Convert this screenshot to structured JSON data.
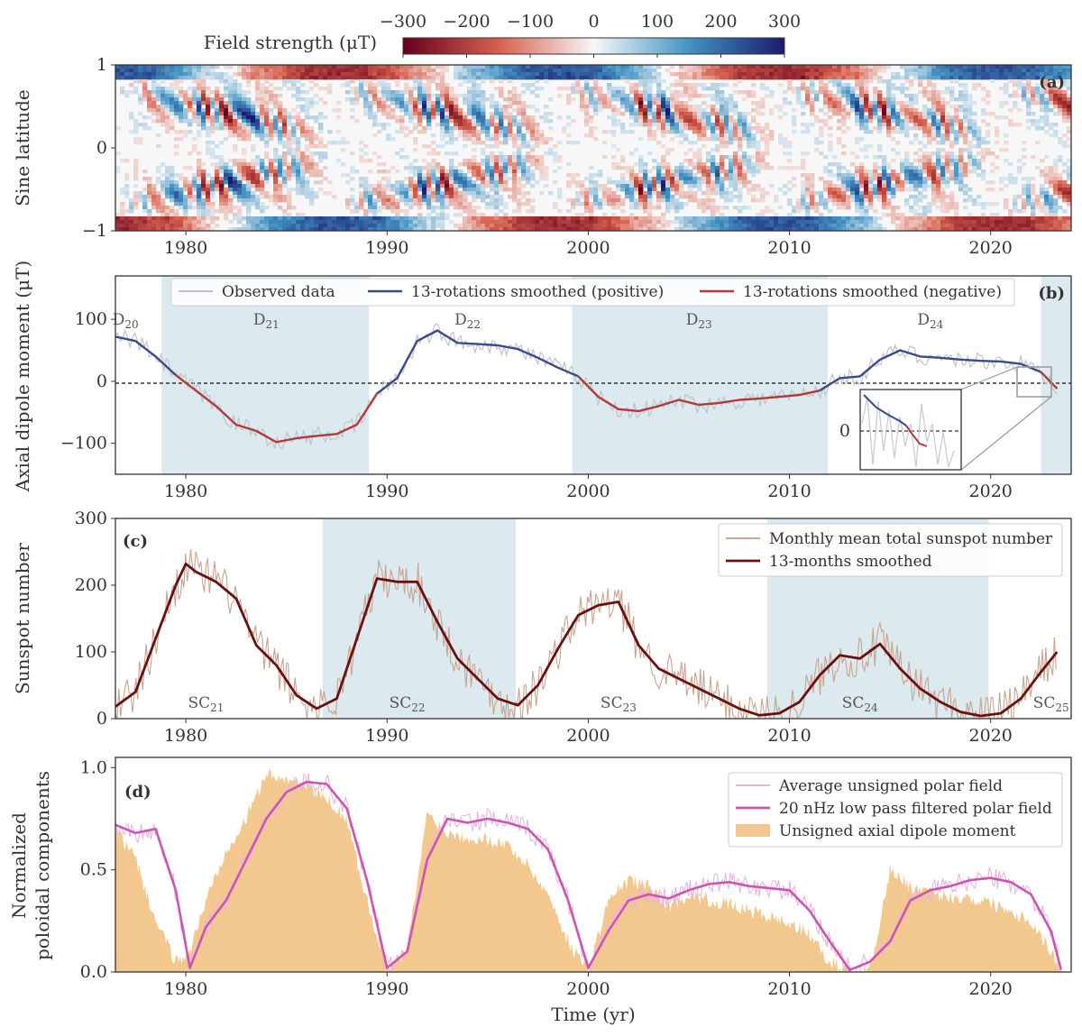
{
  "colorbar": {
    "label": "Field strength (μT)",
    "ticks": [
      "−300",
      "−200",
      "−100",
      "0",
      "100",
      "200",
      "300"
    ],
    "min": -300,
    "max": 300,
    "colors": [
      "#67001f",
      "#d6604d",
      "#f7f7f7",
      "#4393c3",
      "#1a1a6e"
    ]
  },
  "x_axis": {
    "range": [
      1976.5,
      2024.0
    ],
    "ticks": [
      "1980",
      "1990",
      "2000",
      "2010",
      "2020"
    ],
    "tick_values": [
      1980,
      1990,
      2000,
      2010,
      2020
    ],
    "label": "Time (yr)"
  },
  "panels": {
    "a": {
      "label": "(a)",
      "ylabel": "Sine latitude",
      "yticks": [
        "1",
        "0",
        "−1"
      ],
      "ytick_values": [
        1,
        0,
        -1
      ]
    },
    "b": {
      "label": "(b)",
      "ylabel": "Axial dipole moment (μT)",
      "yticks": [
        "100",
        "0",
        "−100"
      ],
      "ytick_values": [
        100,
        0,
        -100
      ],
      "legend": [
        "Observed data",
        "13-rotations smoothed (positive)",
        "13-rotations smoothed (negative)"
      ],
      "inset_tick": "0",
      "regions": [
        {
          "label": "D20",
          "base": "D",
          "sub": "20",
          "x": 1977.0
        },
        {
          "label": "D21",
          "base": "D",
          "sub": "21",
          "x": 1984.0
        },
        {
          "label": "D22",
          "base": "D",
          "sub": "22",
          "x": 1994.0
        },
        {
          "label": "D23",
          "base": "D",
          "sub": "23",
          "x": 2005.5
        },
        {
          "label": "D24",
          "base": "D",
          "sub": "24",
          "x": 2017.0
        }
      ],
      "shaded": [
        [
          1978.8,
          1989.1
        ],
        [
          1999.2,
          2011.9
        ],
        [
          2022.5,
          2024.0
        ]
      ]
    },
    "c": {
      "label": "(c)",
      "ylabel": "Sunspot number",
      "yticks": [
        "300",
        "200",
        "100",
        "0"
      ],
      "ytick_values": [
        300,
        200,
        100,
        0
      ],
      "legend": [
        "Monthly mean total sunspot number",
        "13-months smoothed"
      ],
      "regions": [
        {
          "label": "SC21",
          "base": "SC",
          "sub": "21",
          "x": 1981.0
        },
        {
          "label": "SC22",
          "base": "SC",
          "sub": "22",
          "x": 1991.0
        },
        {
          "label": "SC23",
          "base": "SC",
          "sub": "23",
          "x": 2001.5
        },
        {
          "label": "SC24",
          "base": "SC",
          "sub": "24",
          "x": 2013.5
        },
        {
          "label": "SC25",
          "base": "SC",
          "sub": "25",
          "x": 2023.0
        }
      ],
      "shaded": [
        [
          1986.8,
          1996.4
        ],
        [
          2008.9,
          2019.9
        ]
      ]
    },
    "d": {
      "label": "(d)",
      "ylabel": [
        "Normalized",
        "poloidal components"
      ],
      "yticks": [
        "1.0",
        "0.5",
        "0.0"
      ],
      "ytick_values": [
        1.0,
        0.5,
        0.0
      ],
      "legend": [
        "Average unsigned polar field",
        "20 nHz low pass filtered polar field",
        "Unsigned axial dipole moment"
      ]
    }
  },
  "colors": {
    "shade": "#dce9ef",
    "positive": "#3b4a8a",
    "negative": "#b33a3a",
    "observed": "#bfc4cc",
    "sunspot_raw": "#c9a490",
    "sunspot_smooth": "#6b1010",
    "polar_raw": "#e8b4e0",
    "polar_smooth": "#cc55b0",
    "dipole_fill": "#f2c88e"
  },
  "chart_data": [
    {
      "type": "heatmap",
      "title": "",
      "xlabel": "",
      "ylabel": "Sine latitude",
      "ylim": [
        -1,
        1
      ],
      "note_values": "magnetic butterfly diagram, field strength in μT, colour range -300 to 300"
    },
    {
      "type": "line",
      "ylabel": "Axial dipole moment (μT)",
      "ylim": [
        -150,
        170
      ],
      "x": [
        1976.5,
        1977.5,
        1978.5,
        1979.5,
        1980.5,
        1981.5,
        1982.5,
        1983.5,
        1984.5,
        1985.5,
        1986.5,
        1987.5,
        1988.5,
        1989.5,
        1990.5,
        1991.5,
        1992.5,
        1993.5,
        1994.5,
        1995.5,
        1996.5,
        1997.5,
        1998.5,
        1999.5,
        2000.5,
        2001.5,
        2002.5,
        2003.5,
        2004.5,
        2005.5,
        2006.5,
        2007.5,
        2008.5,
        2009.5,
        2010.5,
        2011.5,
        2012.5,
        2013.5,
        2014.5,
        2015.5,
        2016.5,
        2017.5,
        2018.5,
        2019.5,
        2020.5,
        2021.5,
        2022.5,
        2023.3
      ],
      "series": [
        {
          "name": "13-rotations smoothed (positive)",
          "values": [
            72,
            65,
            40,
            10,
            null,
            null,
            null,
            null,
            null,
            null,
            null,
            null,
            null,
            null,
            5,
            65,
            82,
            62,
            60,
            58,
            52,
            38,
            22,
            8,
            null,
            null,
            null,
            null,
            null,
            null,
            null,
            null,
            null,
            null,
            null,
            null,
            5,
            8,
            35,
            50,
            40,
            38,
            35,
            33,
            32,
            28,
            15,
            null
          ]
        },
        {
          "name": "13-rotations smoothed (negative)",
          "values": [
            null,
            null,
            null,
            null,
            -15,
            -40,
            -70,
            -80,
            -98,
            -92,
            -88,
            -85,
            -70,
            -20,
            null,
            null,
            null,
            null,
            null,
            null,
            null,
            null,
            null,
            null,
            -25,
            -45,
            -48,
            -40,
            -30,
            -38,
            -35,
            -30,
            -28,
            -25,
            -22,
            -15,
            null,
            null,
            null,
            null,
            null,
            null,
            null,
            null,
            null,
            null,
            null,
            -12
          ]
        }
      ]
    },
    {
      "type": "line",
      "ylabel": "Sunspot number",
      "ylim": [
        0,
        300
      ],
      "x": [
        1976.5,
        1977.5,
        1978.5,
        1979.5,
        1980.0,
        1980.5,
        1981.5,
        1982.5,
        1983.5,
        1984.5,
        1985.5,
        1986.5,
        1987.5,
        1988.5,
        1989.5,
        1990.5,
        1991.5,
        1992.5,
        1993.5,
        1994.5,
        1995.5,
        1996.5,
        1997.5,
        1998.5,
        1999.5,
        2000.5,
        2001.5,
        2002.5,
        2003.5,
        2004.5,
        2005.5,
        2006.5,
        2007.5,
        2008.5,
        2009.5,
        2010.5,
        2011.5,
        2012.5,
        2013.5,
        2014.5,
        2015.5,
        2016.5,
        2017.5,
        2018.5,
        2019.5,
        2020.5,
        2021.5,
        2022.5,
        2023.3
      ],
      "series": [
        {
          "name": "13-months smoothed",
          "values": [
            18,
            40,
            120,
            200,
            232,
            220,
            205,
            180,
            110,
            80,
            35,
            15,
            30,
            120,
            210,
            205,
            205,
            145,
            90,
            60,
            30,
            20,
            50,
            105,
            155,
            170,
            175,
            110,
            75,
            60,
            45,
            30,
            15,
            5,
            8,
            25,
            65,
            95,
            90,
            112,
            75,
            45,
            25,
            10,
            4,
            8,
            30,
            70,
            100
          ]
        }
      ]
    },
    {
      "type": "area",
      "xlabel": "Time (yr)",
      "ylabel": "Normalized poloidal components",
      "ylim": [
        0,
        1.05
      ],
      "x": [
        1976.5,
        1977.5,
        1978.5,
        1979.5,
        1980.2,
        1981.0,
        1982.0,
        1983.0,
        1984.0,
        1985.0,
        1986.0,
        1987.0,
        1988.0,
        1989.0,
        1990.0,
        1991.0,
        1992.0,
        1993.0,
        1994.0,
        1995.0,
        1996.0,
        1997.0,
        1998.0,
        1999.0,
        2000.0,
        2001.0,
        2002.0,
        2003.0,
        2004.0,
        2005.0,
        2006.0,
        2007.0,
        2008.0,
        2009.0,
        2010.0,
        2011.0,
        2012.0,
        2013.0,
        2014.0,
        2015.0,
        2016.0,
        2017.0,
        2018.0,
        2019.0,
        2020.0,
        2021.0,
        2022.0,
        2023.0,
        2023.5
      ],
      "series": [
        {
          "name": "20 nHz low pass filtered polar field",
          "values": [
            0.72,
            0.68,
            0.7,
            0.4,
            0.02,
            0.22,
            0.35,
            0.55,
            0.75,
            0.88,
            0.93,
            0.92,
            0.8,
            0.45,
            0.02,
            0.1,
            0.55,
            0.75,
            0.73,
            0.75,
            0.73,
            0.7,
            0.6,
            0.35,
            0.02,
            0.2,
            0.35,
            0.38,
            0.36,
            0.4,
            0.43,
            0.44,
            0.42,
            0.41,
            0.4,
            0.3,
            0.15,
            0.01,
            0.05,
            0.15,
            0.35,
            0.4,
            0.42,
            0.45,
            0.46,
            0.44,
            0.38,
            0.2,
            0.01
          ]
        },
        {
          "name": "Unsigned axial dipole moment",
          "values": [
            0.7,
            0.55,
            0.25,
            0.05,
            0.1,
            0.35,
            0.6,
            0.75,
            0.97,
            0.95,
            0.9,
            0.85,
            0.75,
            0.35,
            0.02,
            0.1,
            0.78,
            0.68,
            0.66,
            0.65,
            0.62,
            0.52,
            0.38,
            0.15,
            0.01,
            0.35,
            0.45,
            0.42,
            0.32,
            0.38,
            0.35,
            0.33,
            0.3,
            0.27,
            0.24,
            0.18,
            0.05,
            0.0,
            0.01,
            0.5,
            0.42,
            0.38,
            0.37,
            0.36,
            0.34,
            0.3,
            0.25,
            0.1,
            0.02
          ]
        }
      ]
    }
  ]
}
